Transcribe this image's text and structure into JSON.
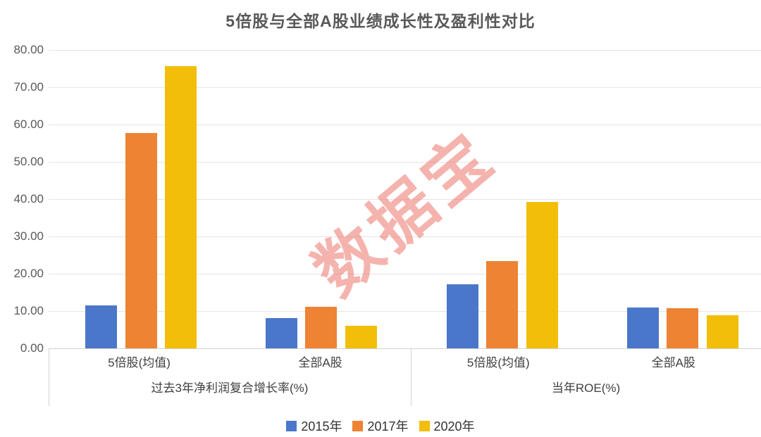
{
  "title": "5倍股与全部A股业绩成长性及盈利性对比",
  "watermark": "数据宝",
  "colors": {
    "series": [
      "#4A77C9",
      "#ED8333",
      "#F2BE0A"
    ],
    "gridline": "#E4E4E4",
    "axis_text": "#595959",
    "title_text": "#595959",
    "category_text": "#3F3F3F",
    "watermark": "#EC746C"
  },
  "chart_data": {
    "type": "bar",
    "title": "5倍股与全部A股业绩成长性及盈利性对比",
    "panels": [
      {
        "label": "过去3年净利润复合增长率(%)",
        "categories": [
          "5倍股(均值)",
          "全部A股"
        ]
      },
      {
        "label": "当年ROE(%)",
        "categories": [
          "5倍股(均值)",
          "全部A股"
        ]
      }
    ],
    "groups": [
      "5倍股(均值)",
      "全部A股",
      "5倍股(均值)",
      "全部A股"
    ],
    "series": [
      {
        "name": "2015年",
        "color": "#4A77C9",
        "values": [
          11.5,
          8.2,
          17.1,
          10.9
        ]
      },
      {
        "name": "2017年",
        "color": "#ED8333",
        "values": [
          57.7,
          11.2,
          23.4,
          10.8
        ]
      },
      {
        "name": "2020年",
        "color": "#F2BE0A",
        "values": [
          75.7,
          6.0,
          39.3,
          8.9
        ]
      }
    ],
    "ylim": [
      0,
      80
    ],
    "ytick_step": 10,
    "ytick_labels": [
      "0.00",
      "10.00",
      "20.00",
      "30.00",
      "40.00",
      "50.00",
      "60.00",
      "70.00",
      "80.00"
    ],
    "grid": true,
    "legend_position": "bottom"
  },
  "legend": {
    "items": [
      {
        "label": "2015年",
        "color": "#4A77C9"
      },
      {
        "label": "2017年",
        "color": "#ED8333"
      },
      {
        "label": "2020年",
        "color": "#F2BE0A"
      }
    ]
  }
}
